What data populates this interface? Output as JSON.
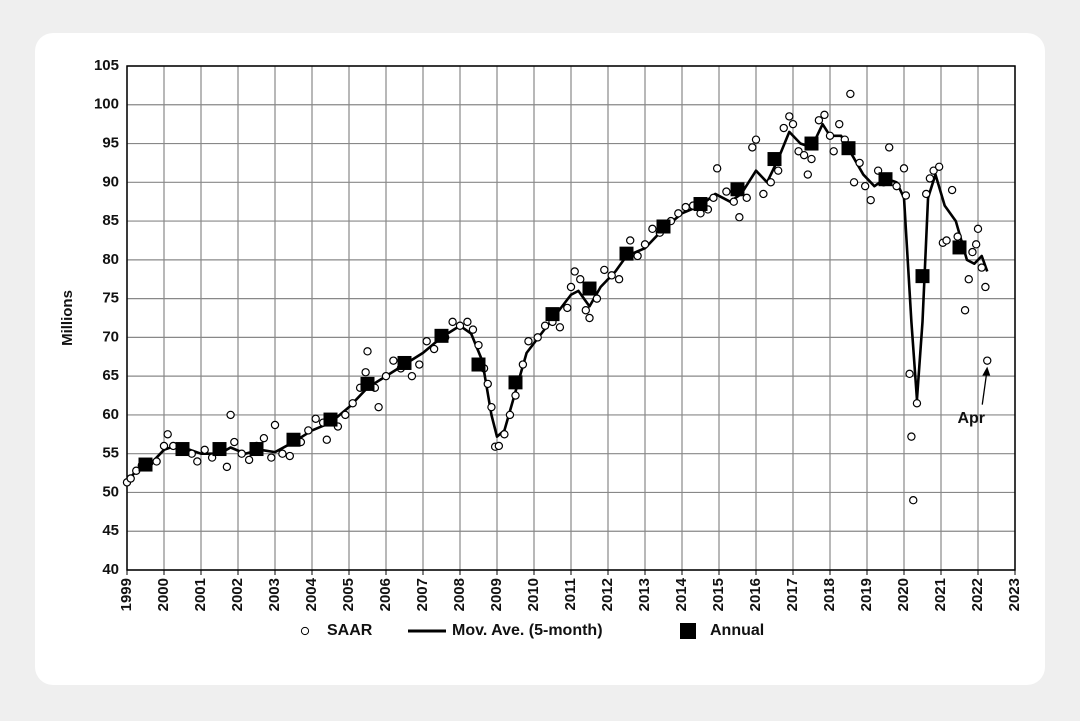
{
  "chart_data": {
    "type": "scatter-line",
    "ylabel": "Millions",
    "xlim": [
      1999,
      2023
    ],
    "xticks": [
      1999,
      2000,
      2001,
      2002,
      2003,
      2004,
      2005,
      2006,
      2007,
      2008,
      2009,
      2010,
      2011,
      2012,
      2013,
      2014,
      2015,
      2016,
      2017,
      2018,
      2019,
      2020,
      2021,
      2022,
      2023
    ],
    "ylim": [
      40,
      105
    ],
    "yticks": [
      40,
      45,
      50,
      55,
      60,
      65,
      70,
      75,
      80,
      85,
      90,
      95,
      100,
      105
    ],
    "grid": true,
    "legend": "bottom",
    "annotation": "Apr",
    "series": [
      {
        "name": "SAAR",
        "color": "#000000",
        "marker": "circle",
        "x": [
          1999.0,
          1999.1,
          1999.25,
          1999.4,
          1999.6,
          1999.8,
          2000.0,
          2000.1,
          2000.25,
          2000.5,
          2000.75,
          2000.9,
          2001.1,
          2001.3,
          2001.5,
          2001.7,
          2001.8,
          2001.9,
          2002.1,
          2002.3,
          2002.5,
          2002.7,
          2002.9,
          2003.0,
          2003.2,
          2003.4,
          2003.7,
          2003.9,
          2004.1,
          2004.3,
          2004.4,
          2004.7,
          2004.9,
          2005.1,
          2005.3,
          2005.45,
          2005.5,
          2005.7,
          2005.8,
          2006.0,
          2006.2,
          2006.4,
          2006.7,
          2006.9,
          2007.1,
          2007.3,
          2007.6,
          2007.8,
          2008.0,
          2008.2,
          2008.35,
          2008.5,
          2008.65,
          2008.75,
          2008.85,
          2008.95,
          2009.05,
          2009.2,
          2009.35,
          2009.5,
          2009.7,
          2009.85,
          2010.1,
          2010.3,
          2010.5,
          2010.7,
          2010.9,
          2011.0,
          2011.1,
          2011.25,
          2011.4,
          2011.5,
          2011.7,
          2011.9,
          2012.1,
          2012.3,
          2012.45,
          2012.6,
          2012.8,
          2013.0,
          2013.2,
          2013.4,
          2013.7,
          2013.9,
          2014.1,
          2014.3,
          2014.5,
          2014.7,
          2014.85,
          2014.95,
          2015.2,
          2015.4,
          2015.55,
          2015.75,
          2015.9,
          2016.0,
          2016.2,
          2016.4,
          2016.6,
          2016.75,
          2016.9,
          2017.0,
          2017.15,
          2017.3,
          2017.4,
          2017.5,
          2017.7,
          2017.85,
          2018.0,
          2018.1,
          2018.25,
          2018.4,
          2018.55,
          2018.65,
          2018.8,
          2018.95,
          2019.1,
          2019.3,
          2019.45,
          2019.6,
          2019.8,
          2020.0,
          2020.05,
          2020.15,
          2020.2,
          2020.25,
          2020.35,
          2020.5,
          2020.6,
          2020.7,
          2020.8,
          2020.95,
          2021.05,
          2021.15,
          2021.3,
          2021.45,
          2021.55,
          2021.65,
          2021.75,
          2021.85,
          2021.95,
          2022.0,
          2022.1,
          2022.2,
          2022.25
        ],
        "values": [
          51.3,
          51.8,
          52.8,
          53.5,
          53.8,
          54,
          56,
          57.5,
          56,
          55.5,
          55,
          54,
          55.5,
          54.5,
          55.5,
          53.3,
          60,
          56.5,
          55,
          54.2,
          56,
          57,
          54.5,
          58.7,
          55,
          54.7,
          56.5,
          58,
          59.5,
          59,
          56.8,
          58.5,
          60,
          61.5,
          63.5,
          65.5,
          68.2,
          63.5,
          61,
          65,
          67,
          66,
          65,
          66.5,
          69.5,
          68.5,
          70,
          72,
          71.5,
          72,
          71,
          69,
          66,
          64,
          61,
          55.9,
          56,
          57.5,
          60,
          62.5,
          66.5,
          69.5,
          70,
          71.5,
          72,
          71.3,
          73.8,
          76.5,
          78.5,
          77.5,
          73.5,
          72.5,
          75,
          78.7,
          78,
          77.5,
          80.5,
          82.5,
          80.5,
          82,
          84,
          83.5,
          85,
          86,
          86.8,
          87,
          86,
          86.5,
          88,
          91.8,
          88.8,
          87.5,
          85.5,
          88,
          94.5,
          95.5,
          88.5,
          90,
          91.5,
          97,
          98.5,
          97.5,
          94,
          93.5,
          91,
          93,
          98,
          98.7,
          96,
          94,
          97.5,
          95.5,
          101.4,
          90,
          92.5,
          89.5,
          87.7,
          91.5,
          90,
          94.5,
          89.5,
          91.8,
          88.3,
          65.3,
          57.2,
          49,
          61.5,
          78,
          88.5,
          90.5,
          91.5,
          92,
          82.2,
          82.5,
          89,
          83,
          82,
          73.5,
          77.5,
          81,
          82,
          84,
          79,
          76.5,
          67
        ]
      },
      {
        "name": "Mov. Ave. (5-month)",
        "color": "#000000",
        "marker": "line",
        "x": [
          1999.0,
          1999.3,
          1999.7,
          2000.0,
          2000.3,
          2000.7,
          2001.0,
          2001.5,
          2001.8,
          2002.2,
          2002.6,
          2003.0,
          2003.5,
          2004.0,
          2004.5,
          2005.0,
          2005.5,
          2006.0,
          2006.5,
          2007.0,
          2007.5,
          2008.0,
          2008.3,
          2008.6,
          2008.85,
          2009.0,
          2009.2,
          2009.5,
          2009.8,
          2010.2,
          2010.6,
          2011.0,
          2011.2,
          2011.5,
          2011.8,
          2012.2,
          2012.5,
          2013.0,
          2013.5,
          2014.0,
          2014.5,
          2014.9,
          2015.3,
          2015.6,
          2016.0,
          2016.3,
          2016.6,
          2016.9,
          2017.2,
          2017.5,
          2017.8,
          2018.0,
          2018.3,
          2018.6,
          2018.9,
          2019.2,
          2019.5,
          2019.8,
          2020.0,
          2020.2,
          2020.35,
          2020.5,
          2020.65,
          2020.85,
          2021.1,
          2021.4,
          2021.7,
          2021.9,
          2022.1,
          2022.25
        ],
        "values": [
          51.5,
          53,
          54,
          55.5,
          56,
          55.5,
          55,
          55,
          55.8,
          55,
          55.5,
          55.2,
          56.5,
          58,
          59,
          61,
          63.5,
          65,
          66.5,
          68,
          70,
          71.5,
          70.5,
          67,
          60,
          57.2,
          58,
          63,
          68,
          70.5,
          73,
          75.5,
          76,
          74,
          76.5,
          78.5,
          80.5,
          81.5,
          84,
          86,
          87,
          88.5,
          87.5,
          88.5,
          91.5,
          90,
          93,
          96.5,
          95,
          94.5,
          97.5,
          96,
          96,
          93.5,
          91,
          89.5,
          90.5,
          90,
          88,
          72,
          62,
          72,
          88,
          91,
          87,
          85,
          80,
          79.5,
          80.5,
          78.5
        ]
      },
      {
        "name": "Annual",
        "color": "#000000",
        "marker": "square",
        "x": [
          1999.5,
          2000.5,
          2001.5,
          2002.5,
          2003.5,
          2004.5,
          2005.5,
          2006.5,
          2007.5,
          2008.5,
          2009.5,
          2010.5,
          2011.5,
          2012.5,
          2013.5,
          2014.5,
          2015.5,
          2016.5,
          2017.5,
          2018.5,
          2019.5,
          2020.5,
          2021.5
        ],
        "values": [
          53.6,
          55.6,
          55.6,
          55.6,
          56.8,
          59.4,
          64.0,
          66.7,
          70.2,
          66.5,
          64.2,
          73.0,
          76.3,
          80.8,
          84.3,
          87.2,
          89.1,
          93.0,
          95.0,
          94.4,
          90.4,
          77.9,
          81.6
        ]
      }
    ]
  }
}
